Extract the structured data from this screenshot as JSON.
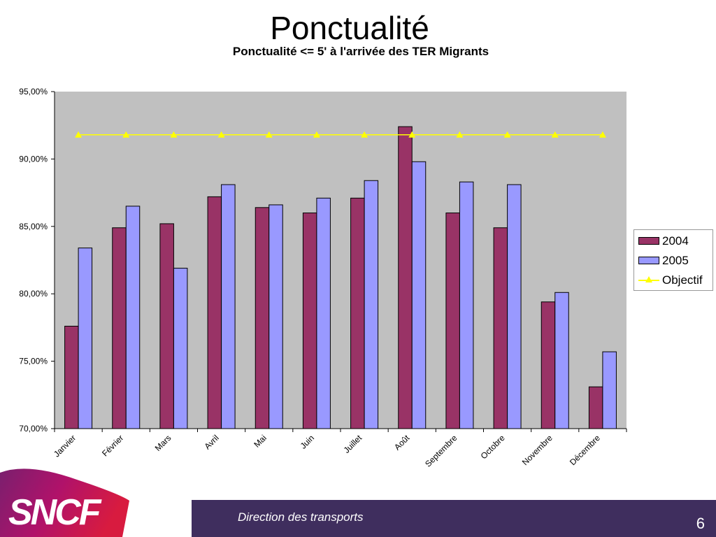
{
  "slide": {
    "title": "Ponctualité",
    "footer_text": "Direction des transports",
    "page_number": "6",
    "logo_text": "SNCF"
  },
  "colors": {
    "plot_background": "#c0c0c0",
    "series_2004": "#993366",
    "series_2005": "#9999ff",
    "objectif": "#ffff00",
    "footer_band": "#3f2e5e"
  },
  "chart_data": {
    "type": "bar",
    "title": "Ponctualité <= 5' à l'arrivée des TER Migrants",
    "categories": [
      "Janvier",
      "Février",
      "Mars",
      "Avril",
      "Mai",
      "Juin",
      "Juillet",
      "Août",
      "Septembre",
      "Octobre",
      "Novembre",
      "Décembre"
    ],
    "series": [
      {
        "name": "2004",
        "type": "bar",
        "values": [
          77.6,
          84.9,
          85.2,
          87.2,
          86.4,
          86.0,
          87.1,
          92.4,
          86.0,
          84.9,
          79.4,
          73.1
        ]
      },
      {
        "name": "2005",
        "type": "bar",
        "values": [
          83.4,
          86.5,
          81.9,
          88.1,
          86.6,
          87.1,
          88.4,
          89.8,
          88.3,
          88.1,
          80.1,
          75.7
        ]
      },
      {
        "name": "Objectif",
        "type": "line",
        "marker": "triangle",
        "values": [
          91.8,
          91.8,
          91.8,
          91.8,
          91.8,
          91.8,
          91.8,
          91.8,
          91.8,
          91.8,
          91.8,
          91.8
        ]
      }
    ],
    "ylim": [
      70,
      95
    ],
    "y_ticks": [
      70,
      75,
      80,
      85,
      90,
      95
    ],
    "y_tick_labels": [
      "70,00%",
      "75,00%",
      "80,00%",
      "85,00%",
      "90,00%",
      "95,00%"
    ],
    "grid": false,
    "legend_position": "right"
  }
}
